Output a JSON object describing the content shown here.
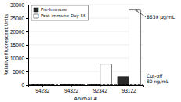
{
  "chart_data": {
    "type": "bar",
    "categories": [
      "94282",
      "94322",
      "92342",
      "93122"
    ],
    "series": [
      {
        "name": "Pre-Immune",
        "color": "#2a2a2a",
        "values": [
          80,
          120,
          80,
          3000
        ]
      },
      {
        "name": "Post-Immune Day 56",
        "color": "#ffffff",
        "values": [
          100,
          200,
          7700,
          28000
        ]
      }
    ],
    "ylim": [
      0,
      30000
    ],
    "yticks": [
      0,
      5000,
      10000,
      15000,
      20000,
      25000,
      30000
    ],
    "ylabel": "Relative Fluorescent Units",
    "xlabel": "Animal #",
    "grid": true,
    "legend": "upper-left",
    "cutoff": {
      "value": 120,
      "label": "Cut-off\n80 ng/mL"
    },
    "annotations": [
      {
        "text": "8639 μg/mL",
        "x": "93122",
        "y": 28000
      }
    ]
  }
}
